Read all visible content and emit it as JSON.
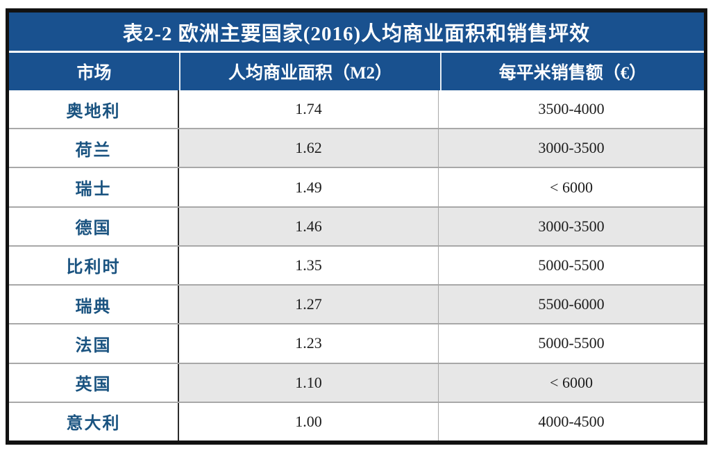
{
  "colors": {
    "navy_header_bg": "#19518F",
    "header_text": "#FFFFFF",
    "market_text_blue": "#1A5380",
    "value_text": "#1C1C1C",
    "alt_row_gray": "#E7E7E7",
    "grid_light_gray": "#A8A8A8",
    "grid_dark": "#2B2B2B",
    "outer_border": "#121212"
  },
  "table": {
    "title": "表2-2 欧洲主要国家(2016)人均商业面积和销售坪效",
    "columns": {
      "market": "市场",
      "area": "人均商业面积（M2）",
      "sales": "每平米销售额（€）"
    },
    "rows": [
      {
        "market": "奥地利",
        "area": "1.74",
        "sales": "3500-4000"
      },
      {
        "market": "荷兰",
        "area": "1.62",
        "sales": "3000-3500"
      },
      {
        "market": "瑞士",
        "area": "1.49",
        "sales": "< 6000"
      },
      {
        "market": "德国",
        "area": "1.46",
        "sales": "3000-3500"
      },
      {
        "market": "比利时",
        "area": "1.35",
        "sales": "5000-5500"
      },
      {
        "market": "瑞典",
        "area": "1.27",
        "sales": "5500-6000"
      },
      {
        "market": "法国",
        "area": "1.23",
        "sales": "5000-5500"
      },
      {
        "market": "英国",
        "area": "1.10",
        "sales": "< 6000"
      },
      {
        "market": "意大利",
        "area": "1.00",
        "sales": "4000-4500"
      }
    ]
  },
  "chart_data": {
    "type": "table",
    "title": "表2-2 欧洲主要国家(2016)人均商业面积和销售坪效",
    "columns": [
      "市场",
      "人均商业面积（M2）",
      "每平米销售额（€）"
    ],
    "rows": [
      [
        "奥地利",
        "1.74",
        "3500-4000"
      ],
      [
        "荷兰",
        "1.62",
        "3000-3500"
      ],
      [
        "瑞士",
        "1.49",
        "< 6000"
      ],
      [
        "德国",
        "1.46",
        "3000-3500"
      ],
      [
        "比利时",
        "1.35",
        "5000-5500"
      ],
      [
        "瑞典",
        "1.27",
        "5500-6000"
      ],
      [
        "法国",
        "1.23",
        "5000-5500"
      ],
      [
        "英国",
        "1.10",
        "< 6000"
      ],
      [
        "意大利",
        "1.00",
        "4000-4500"
      ]
    ],
    "notes": {
      "year": "2016",
      "area_unit": "M2 per capita",
      "sales_unit": "EUR per square meter",
      "row_shading": "alternate rows (2,4,6,8) shaded gray in value columns only"
    }
  }
}
